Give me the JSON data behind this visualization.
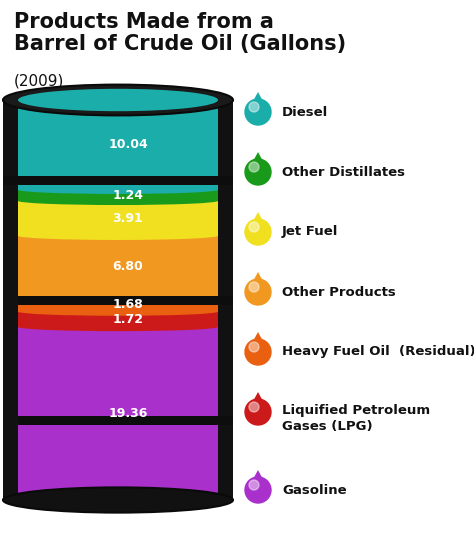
{
  "title_line1": "Products Made from a",
  "title_line2": "Barrel of Crude Oil (Gallons)",
  "subtitle": "(2009)",
  "segments": [
    {
      "label": "Diesel",
      "value": 10.04,
      "color": "#1aadaa"
    },
    {
      "label": "Other Distillates",
      "value": 1.24,
      "color": "#1a9a1a"
    },
    {
      "label": "Jet Fuel",
      "value": 3.91,
      "color": "#f0e020"
    },
    {
      "label": "Other Products",
      "value": 6.8,
      "color": "#f09820"
    },
    {
      "label": "Heavy Fuel Oil  (Residual)",
      "value": 1.68,
      "color": "#e86010"
    },
    {
      "label": "Liquified Petroleum\nGases (LPG)",
      "value": 1.72,
      "color": "#cc1a1a"
    },
    {
      "label": "Gasoline",
      "value": 19.36,
      "color": "#aa30cc"
    }
  ],
  "barrel_outer": "#111111",
  "barrel_rim": "#222222",
  "barrel_ring": "#1a1a1a",
  "barrel_grad_left": "#2a2a2a",
  "background": "#ffffff",
  "text_color": "#ffffff",
  "title_color": "#111111"
}
